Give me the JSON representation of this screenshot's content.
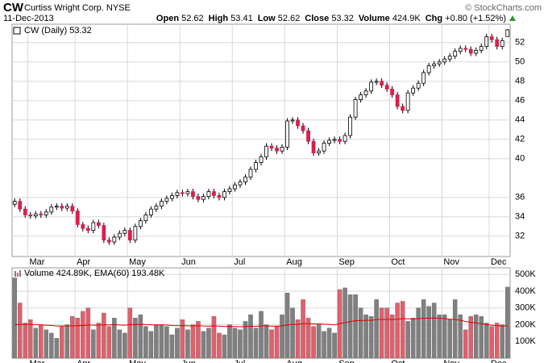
{
  "header": {
    "symbol": "CW",
    "name": "Curtiss Wright Corp.",
    "exchange": "NYSE",
    "date": "11-Dec-2013",
    "credit": "© StockCharts.com",
    "quote": [
      {
        "label": "Open",
        "value": 52.62
      },
      {
        "label": "High",
        "value": 53.41
      },
      {
        "label": "Low",
        "value": 52.62
      },
      {
        "label": "Close",
        "value": 53.32
      },
      {
        "label": "Volume",
        "value": "424.9K"
      },
      {
        "label": "Chg",
        "value": "+0.80 (+1.52%)"
      }
    ]
  },
  "chart_data": [
    {
      "type": "candlestick",
      "legend": "CW (Daily) 53.32",
      "categories": [
        null,
        null,
        null,
        "Mar",
        null,
        null,
        null,
        null,
        null,
        null,
        null,
        null,
        "Apr",
        null,
        null,
        null,
        null,
        null,
        null,
        null,
        null,
        null,
        "May",
        null,
        null,
        null,
        null,
        null,
        null,
        null,
        null,
        null,
        "Jun",
        null,
        null,
        null,
        null,
        null,
        null,
        null,
        null,
        null,
        "Jul",
        null,
        null,
        null,
        null,
        null,
        null,
        null,
        null,
        null,
        "Aug",
        null,
        null,
        null,
        null,
        null,
        null,
        null,
        null,
        null,
        "Sep",
        null,
        null,
        null,
        null,
        null,
        null,
        null,
        null,
        null,
        "Oct",
        null,
        null,
        null,
        null,
        null,
        null,
        null,
        null,
        null,
        "Nov",
        null,
        null,
        null,
        null,
        null,
        null,
        null,
        null,
        "Dec",
        null,
        null,
        null
      ],
      "ohlc": [
        [
          35.3,
          35.9,
          35.0,
          35.6
        ],
        [
          35.6,
          35.9,
          34.5,
          34.8
        ],
        [
          34.8,
          35.1,
          33.9,
          34.2
        ],
        [
          34.2,
          34.5,
          33.8,
          34.1
        ],
        [
          34.1,
          34.6,
          33.8,
          34.3
        ],
        [
          34.3,
          34.6,
          33.9,
          34.2
        ],
        [
          34.2,
          34.8,
          33.9,
          34.5
        ],
        [
          34.5,
          35.3,
          34.2,
          35.0
        ],
        [
          35.0,
          35.4,
          34.7,
          35.1
        ],
        [
          35.1,
          35.4,
          34.6,
          34.9
        ],
        [
          34.9,
          35.4,
          34.6,
          35.1
        ],
        [
          35.1,
          35.4,
          34.3,
          34.6
        ],
        [
          34.6,
          34.9,
          32.9,
          33.2
        ],
        [
          33.2,
          33.5,
          32.5,
          32.8
        ],
        [
          32.8,
          33.1,
          32.3,
          32.6
        ],
        [
          32.6,
          33.7,
          32.3,
          33.4
        ],
        [
          33.4,
          33.7,
          32.8,
          33.1
        ],
        [
          33.1,
          33.4,
          31.3,
          31.6
        ],
        [
          31.6,
          31.9,
          31.1,
          31.4
        ],
        [
          31.4,
          32.2,
          31.1,
          31.9
        ],
        [
          31.9,
          32.6,
          31.6,
          32.3
        ],
        [
          32.3,
          32.9,
          32.0,
          32.6
        ],
        [
          32.6,
          32.9,
          31.3,
          31.6
        ],
        [
          31.6,
          33.3,
          31.3,
          33.0
        ],
        [
          33.0,
          33.9,
          32.7,
          33.6
        ],
        [
          33.6,
          34.5,
          33.3,
          34.2
        ],
        [
          34.2,
          35.1,
          33.9,
          34.8
        ],
        [
          34.8,
          35.4,
          34.5,
          35.1
        ],
        [
          35.1,
          35.9,
          34.8,
          35.6
        ],
        [
          35.6,
          36.2,
          35.3,
          35.9
        ],
        [
          35.9,
          36.5,
          35.6,
          36.2
        ],
        [
          36.2,
          36.8,
          35.9,
          36.5
        ],
        [
          36.5,
          36.8,
          36.1,
          36.4
        ],
        [
          36.4,
          36.9,
          36.1,
          36.6
        ],
        [
          36.6,
          36.9,
          35.8,
          36.1
        ],
        [
          36.1,
          36.4,
          35.5,
          35.8
        ],
        [
          35.8,
          36.4,
          35.5,
          36.1
        ],
        [
          36.1,
          36.9,
          35.8,
          36.6
        ],
        [
          36.6,
          36.9,
          35.9,
          36.2
        ],
        [
          36.2,
          36.5,
          35.7,
          36.0
        ],
        [
          36.0,
          36.9,
          35.7,
          36.6
        ],
        [
          36.6,
          37.2,
          36.3,
          36.9
        ],
        [
          36.9,
          37.6,
          36.6,
          37.3
        ],
        [
          37.3,
          37.9,
          37.0,
          37.6
        ],
        [
          37.6,
          38.4,
          37.3,
          38.1
        ],
        [
          38.1,
          39.2,
          37.8,
          38.9
        ],
        [
          38.9,
          39.9,
          38.6,
          39.6
        ],
        [
          39.6,
          40.5,
          39.3,
          40.2
        ],
        [
          40.2,
          41.6,
          39.9,
          41.3
        ],
        [
          41.3,
          41.6,
          40.8,
          41.1
        ],
        [
          41.1,
          41.4,
          40.5,
          40.8
        ],
        [
          40.8,
          41.5,
          40.5,
          41.2
        ],
        [
          41.2,
          44.2,
          40.9,
          43.9
        ],
        [
          43.9,
          44.3,
          43.6,
          44.0
        ],
        [
          44.0,
          44.3,
          43.1,
          43.4
        ],
        [
          43.4,
          43.7,
          42.6,
          42.9
        ],
        [
          42.9,
          43.2,
          41.5,
          41.8
        ],
        [
          41.8,
          42.1,
          40.3,
          40.6
        ],
        [
          40.6,
          41.1,
          40.3,
          40.8
        ],
        [
          40.8,
          41.9,
          40.5,
          41.6
        ],
        [
          41.6,
          42.2,
          41.3,
          41.9
        ],
        [
          41.9,
          42.3,
          41.6,
          42.0
        ],
        [
          42.0,
          42.3,
          41.5,
          41.8
        ],
        [
          41.8,
          42.7,
          41.5,
          42.4
        ],
        [
          42.4,
          44.6,
          42.1,
          44.3
        ],
        [
          44.3,
          46.4,
          44.0,
          46.1
        ],
        [
          46.1,
          46.9,
          45.8,
          46.6
        ],
        [
          46.6,
          47.3,
          46.3,
          47.0
        ],
        [
          47.0,
          48.2,
          46.7,
          47.9
        ],
        [
          47.9,
          48.3,
          47.6,
          48.0
        ],
        [
          48.0,
          48.3,
          47.3,
          47.6
        ],
        [
          47.6,
          47.9,
          46.9,
          47.2
        ],
        [
          47.2,
          47.5,
          46.3,
          46.6
        ],
        [
          46.6,
          46.9,
          45.1,
          45.4
        ],
        [
          45.4,
          45.7,
          44.7,
          45.0
        ],
        [
          45.0,
          47.1,
          44.7,
          46.8
        ],
        [
          46.8,
          47.6,
          46.5,
          47.3
        ],
        [
          47.3,
          48.1,
          47.0,
          47.8
        ],
        [
          47.8,
          49.2,
          47.5,
          48.9
        ],
        [
          48.9,
          49.9,
          48.6,
          49.6
        ],
        [
          49.6,
          50.1,
          49.3,
          49.8
        ],
        [
          49.8,
          50.3,
          49.5,
          50.0
        ],
        [
          50.0,
          50.6,
          49.7,
          50.3
        ],
        [
          50.3,
          50.9,
          50.0,
          50.6
        ],
        [
          50.6,
          51.4,
          50.3,
          51.1
        ],
        [
          51.1,
          51.7,
          50.8,
          51.4
        ],
        [
          51.4,
          51.7,
          51.0,
          51.3
        ],
        [
          51.3,
          51.6,
          50.6,
          50.9
        ],
        [
          50.9,
          51.5,
          50.6,
          51.2
        ],
        [
          51.2,
          51.9,
          50.9,
          51.6
        ],
        [
          51.6,
          52.9,
          51.3,
          52.6
        ],
        [
          52.6,
          52.9,
          52.0,
          52.3
        ],
        [
          52.3,
          52.6,
          51.3,
          51.6
        ],
        [
          51.6,
          52.5,
          51.3,
          52.2
        ],
        [
          52.62,
          53.41,
          52.62,
          53.32
        ]
      ],
      "ylim": [
        29.9,
        53.9
      ],
      "yticks": [
        32,
        34,
        36,
        40,
        42,
        44,
        46,
        48,
        50,
        52
      ],
      "grid": true,
      "colors": {
        "up": "#ffffff",
        "down": "#d8204c",
        "wick": "#000000"
      }
    },
    {
      "type": "bar",
      "legend": "Volume 424.89K, EMA(60) 193.48K",
      "values": [
        480000,
        330000,
        210000,
        230000,
        180000,
        200000,
        170000,
        150000,
        120000,
        190000,
        200000,
        250000,
        240000,
        280000,
        300000,
        170000,
        210000,
        270000,
        190000,
        240000,
        170000,
        150000,
        300000,
        240000,
        260000,
        190000,
        160000,
        200000,
        200000,
        190000,
        140000,
        180000,
        230000,
        170000,
        200000,
        220000,
        160000,
        180000,
        250000,
        150000,
        140000,
        200000,
        180000,
        170000,
        220000,
        260000,
        180000,
        280000,
        200000,
        170000,
        190000,
        260000,
        390000,
        300000,
        230000,
        350000,
        240000,
        190000,
        200000,
        160000,
        180000,
        150000,
        410000,
        420000,
        380000,
        380000,
        300000,
        260000,
        250000,
        350000,
        300000,
        300000,
        260000,
        330000,
        340000,
        220000,
        240000,
        300000,
        350000,
        310000,
        330000,
        260000,
        260000,
        230000,
        350000,
        260000,
        170000,
        250000,
        260000,
        250000,
        210000,
        190000,
        210000,
        200000,
        424890
      ],
      "ema": [
        200000,
        202000,
        202000,
        201000,
        200000,
        199000,
        197000,
        195000,
        192000,
        192000,
        192000,
        193000,
        194000,
        196000,
        198000,
        197000,
        197000,
        199000,
        199000,
        200000,
        198000,
        197000,
        200000,
        201000,
        202000,
        201000,
        199000,
        199000,
        199000,
        198000,
        195000,
        194000,
        195000,
        193000,
        193000,
        194000,
        192000,
        191000,
        193000,
        191000,
        189000,
        190000,
        189000,
        188000,
        189000,
        191000,
        190000,
        193000,
        193000,
        191000,
        191000,
        193000,
        199000,
        202000,
        202000,
        207000,
        207000,
        205000,
        205000,
        203000,
        202000,
        199000,
        206000,
        213000,
        218000,
        224000,
        225000,
        226000,
        226000,
        230000,
        232000,
        232000,
        231000,
        233000,
        236000,
        235000,
        235000,
        236000,
        238000,
        239000,
        240000,
        239000,
        236000,
        233000,
        231000,
        227000,
        219000,
        214000,
        211000,
        206000,
        200000,
        197000,
        194000,
        192000,
        193480
      ],
      "ylim": [
        0,
        540000
      ],
      "yticks": [
        {
          "value": 100000,
          "label": "100K"
        },
        {
          "value": 200000,
          "label": "200K"
        },
        {
          "value": 300000,
          "label": "300K"
        },
        {
          "value": 400000,
          "label": "400K"
        },
        {
          "value": 500000,
          "label": "500K"
        }
      ],
      "grid": true,
      "colors": {
        "up": "#808080",
        "down": "#e0606c",
        "ema": "#e00000"
      }
    }
  ]
}
